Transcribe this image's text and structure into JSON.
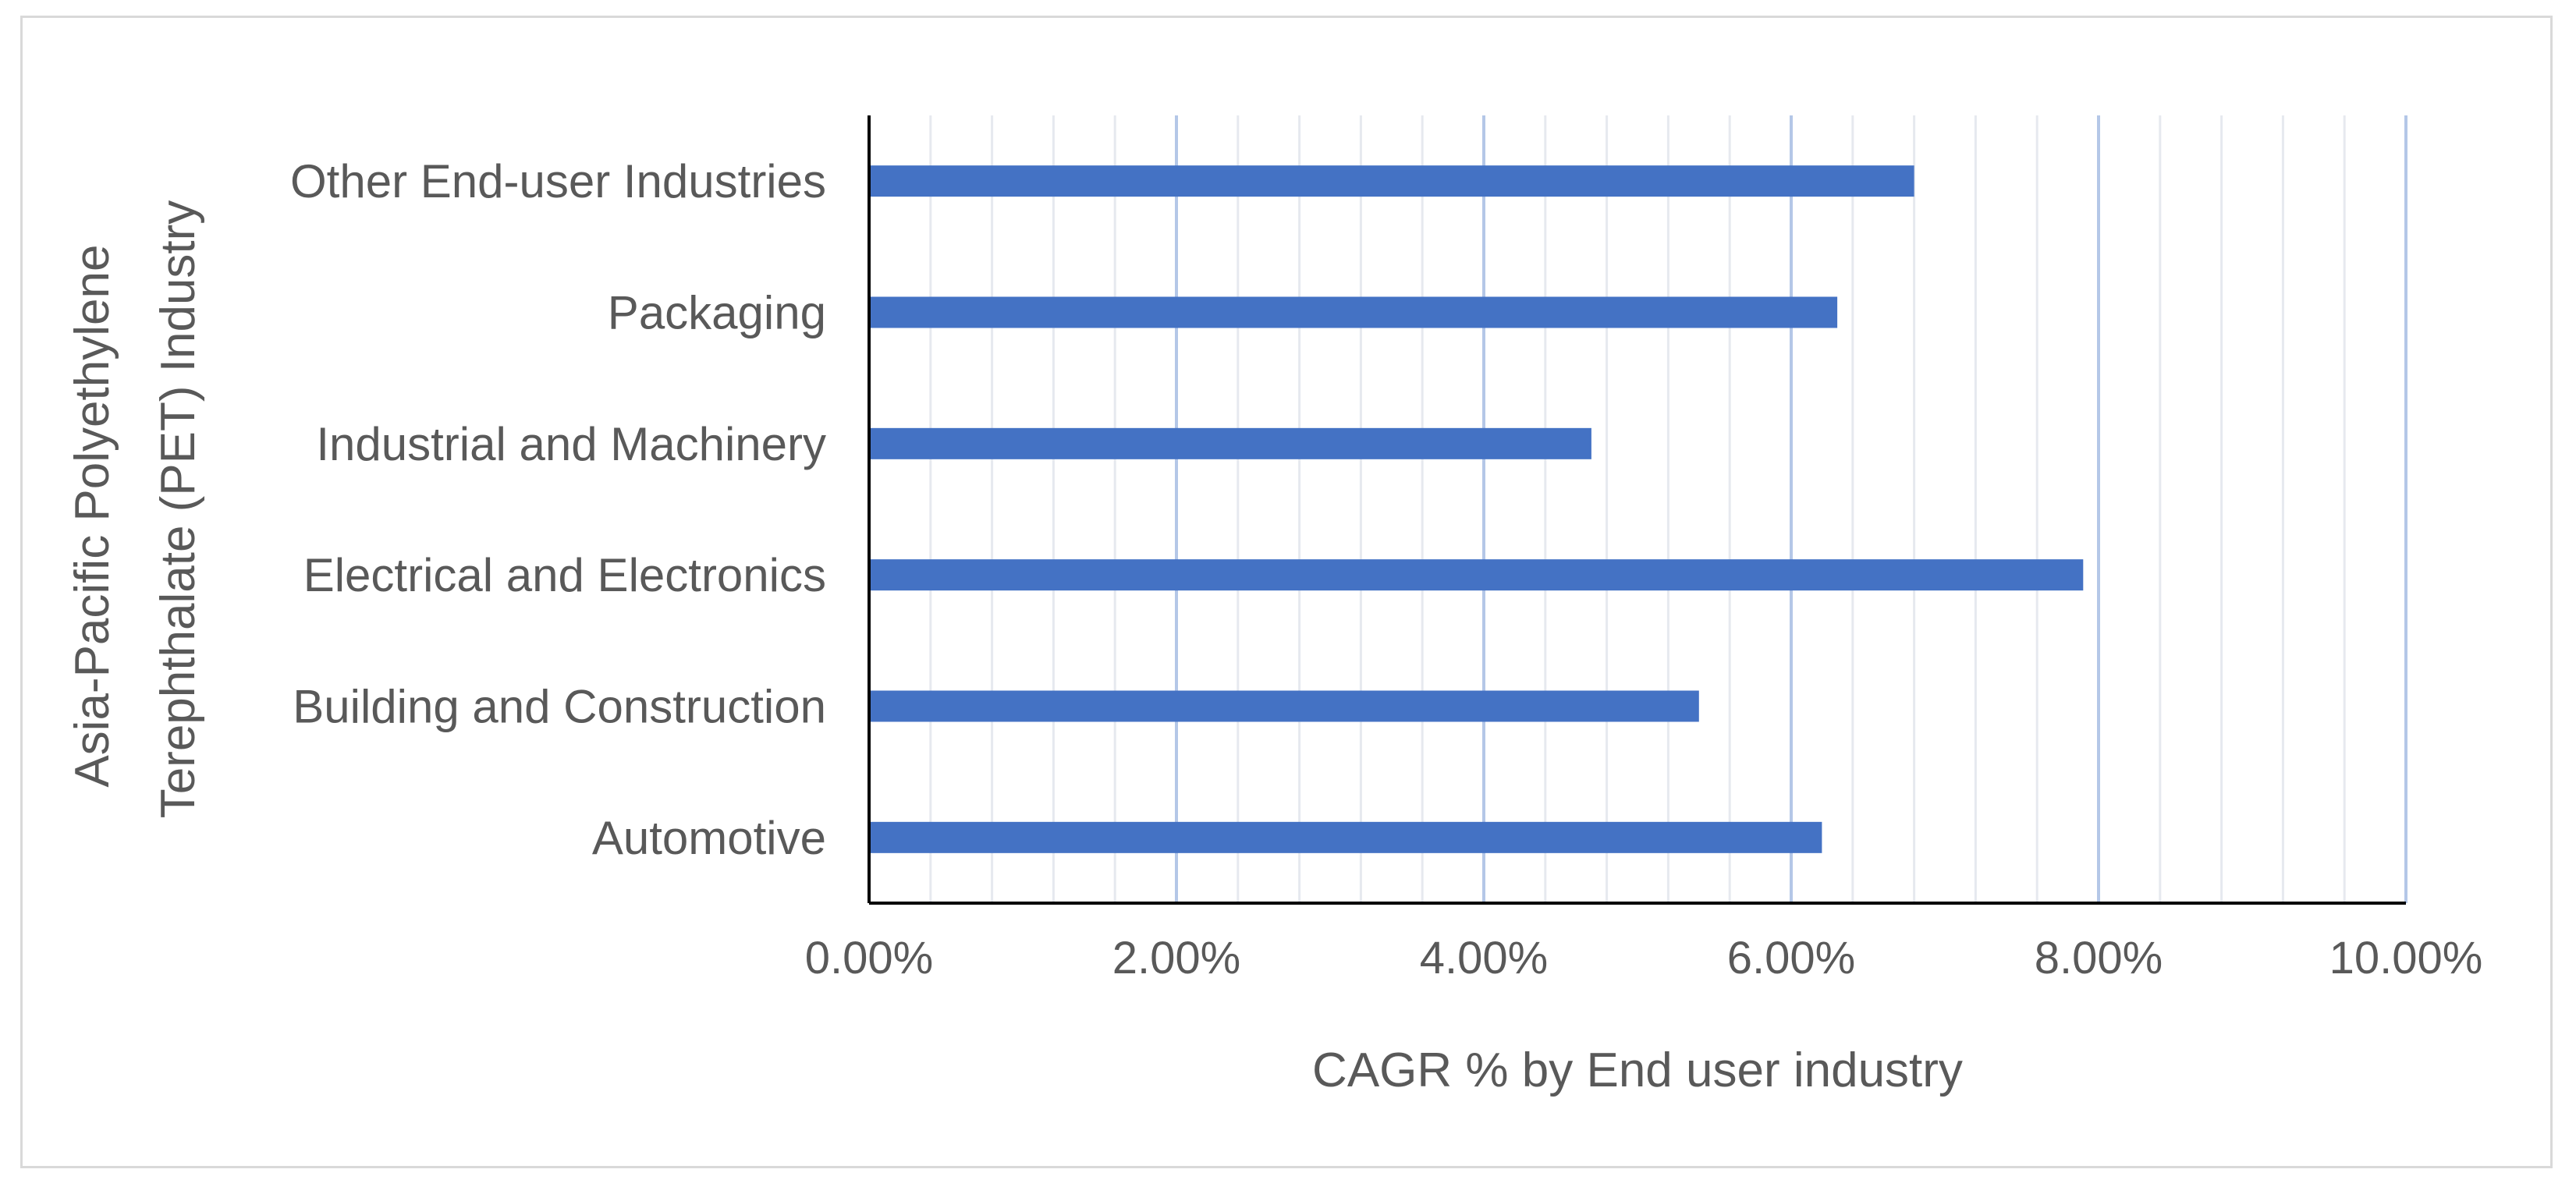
{
  "chart_data": {
    "type": "bar",
    "orientation": "horizontal",
    "categories": [
      "Automotive",
      "Building and Construction",
      "Electrical and Electronics",
      "Industrial and Machinery",
      "Packaging",
      "Other End-user Industries"
    ],
    "series": [
      {
        "values": [
          0.062,
          0.054,
          0.079,
          0.047,
          0.063,
          0.068
        ]
      }
    ],
    "xlabel": "CAGR % by End user industry",
    "ylabel_lines": [
      "Asia-Pacific Polyethylene",
      "Terephthalate (PET) Industry"
    ],
    "xlim": [
      0,
      0.1
    ],
    "x_ticks": [
      0,
      0.02,
      0.04,
      0.06,
      0.08,
      0.1
    ],
    "x_tick_labels": [
      "0.00%",
      "2.00%",
      "4.00%",
      "6.00%",
      "8.00%",
      "10.00%"
    ],
    "grid": "vertical",
    "legend": "none",
    "bar_color": "#4472c4"
  }
}
